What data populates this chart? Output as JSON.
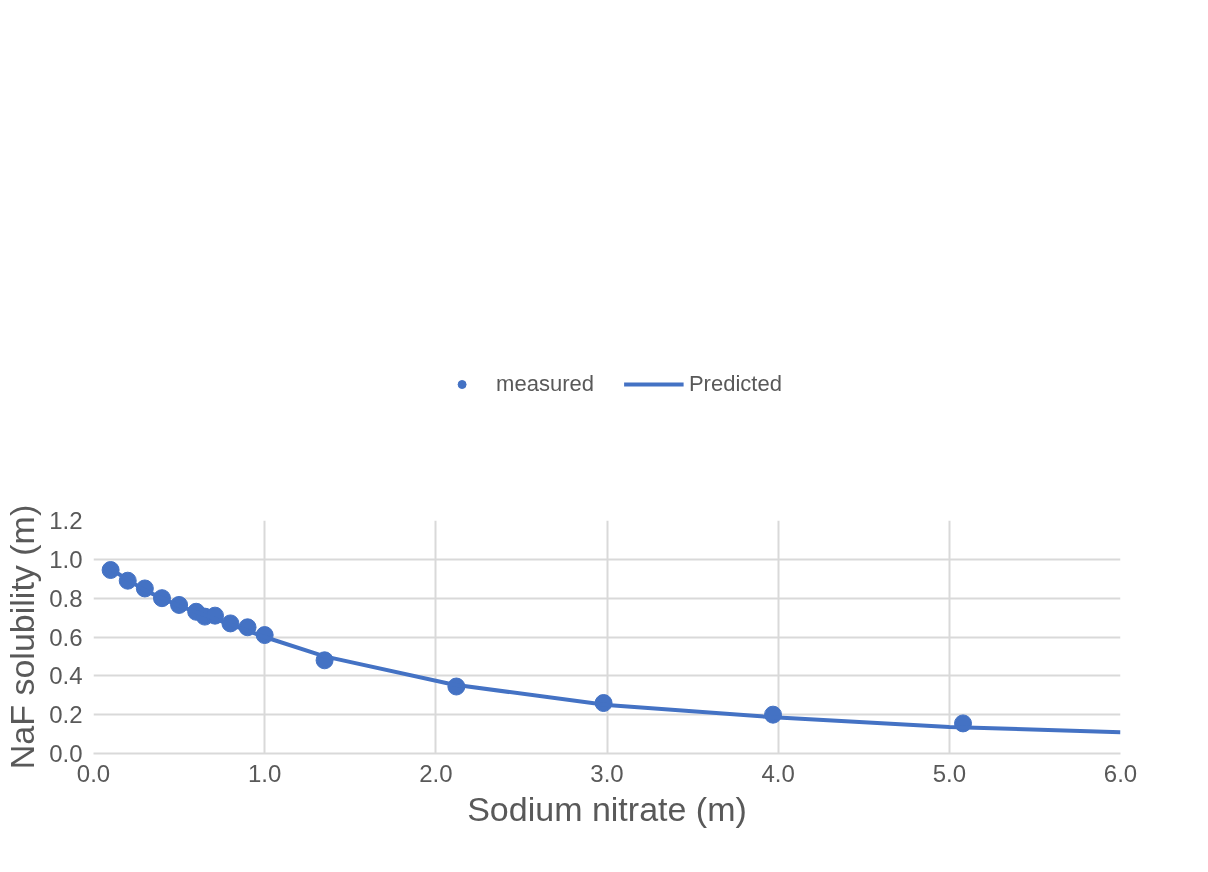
{
  "chart_data": {
    "type": "scatter",
    "xlabel": "Sodium nitrate (m)",
    "ylabel": "NaF solubility (m)",
    "xlim": [
      0,
      6
    ],
    "ylim": [
      0,
      1.2
    ],
    "xticks": [
      {
        "value": 0,
        "label": "0.0"
      },
      {
        "value": 1,
        "label": "1.0"
      },
      {
        "value": 2,
        "label": "2.0"
      },
      {
        "value": 3,
        "label": "3.0"
      },
      {
        "value": 4,
        "label": "4.0"
      },
      {
        "value": 5,
        "label": "5.0"
      },
      {
        "value": 6,
        "label": "6.0"
      }
    ],
    "yticks": [
      {
        "value": 0,
        "label": "0.0"
      },
      {
        "value": 0.2,
        "label": "0.2"
      },
      {
        "value": 0.4,
        "label": "0.4"
      },
      {
        "value": 0.6,
        "label": "0.6"
      },
      {
        "value": 0.8,
        "label": "0.8"
      },
      {
        "value": 1.0,
        "label": "1.0"
      },
      {
        "value": 1.2,
        "label": "1.2"
      }
    ],
    "grid": true,
    "legend": "top",
    "series": [
      {
        "name": "measured",
        "marker": "circle",
        "color": "#4472c4",
        "x": [
          0.1,
          0.2,
          0.3,
          0.4,
          0.5,
          0.6,
          0.65,
          0.71,
          0.8,
          0.9,
          1.0,
          1.35,
          2.12,
          2.98,
          3.97,
          5.08
        ],
        "values": [
          0.945,
          0.89,
          0.85,
          0.8,
          0.765,
          0.73,
          0.705,
          0.71,
          0.67,
          0.65,
          0.61,
          0.48,
          0.345,
          0.26,
          0.2,
          0.155
        ]
      },
      {
        "name": "Predicted",
        "type": "line",
        "marker": "none",
        "line_style": "solid",
        "color": "#4472c4",
        "x": [
          0.1,
          0.3,
          0.5,
          0.75,
          1.0,
          1.35,
          2.1,
          3.0,
          4.0,
          5.0,
          6.0
        ],
        "values": [
          0.95,
          0.84,
          0.76,
          0.68,
          0.6,
          0.5,
          0.355,
          0.25,
          0.185,
          0.137,
          0.11
        ]
      }
    ]
  }
}
